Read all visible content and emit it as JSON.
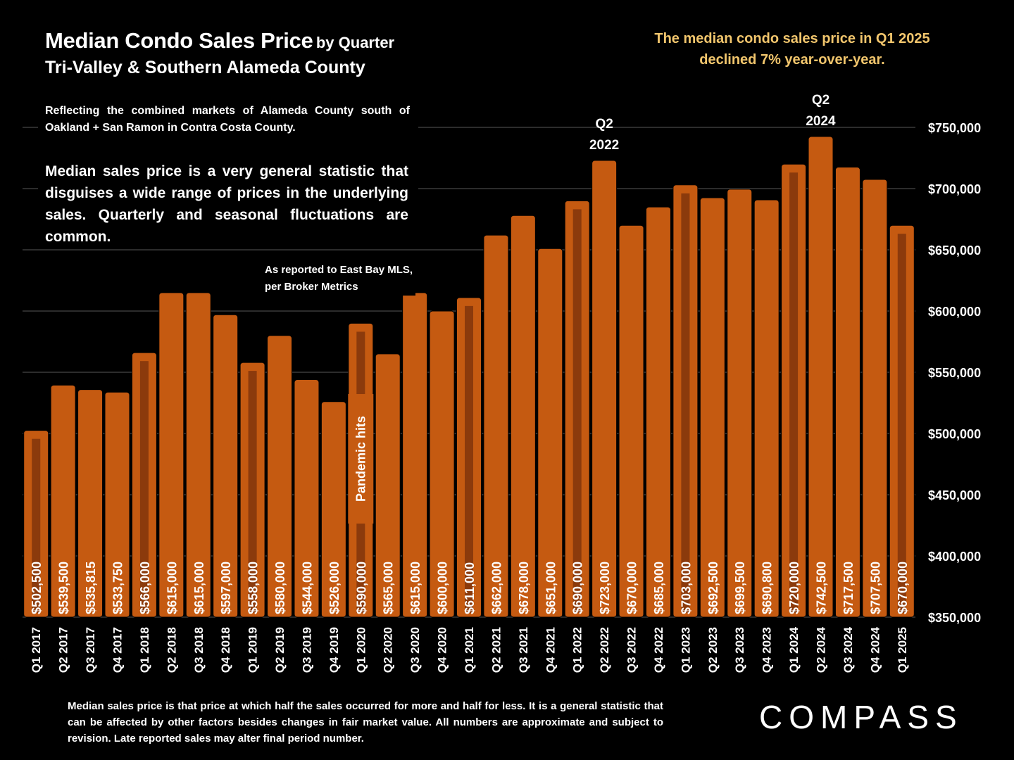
{
  "title": {
    "main": "Median Condo Sales Price",
    "by": "by Quarter",
    "sub": "Tri-Valley & Southern Alameda County"
  },
  "headline": "The median condo sales price in Q1 2025 declined 7% year-over-year.",
  "notes": {
    "small": "Reflecting the combined markets of Alameda County south of Oakland + San Ramon in Contra Costa County.",
    "big": "Median sales price is a very general statistic that disguises a wide range of prices in the underlying sales. Quarterly and seasonal fluctuations are common.",
    "source": "As reported to East Bay MLS, per Broker Metrics"
  },
  "footer": "Median sales price is that price at which half the sales occurred for more and half for less. It is a general statistic that can be affected by other factors besides changes in fair market value. All numbers are approximate and subject to revision. Late reported sales may alter final period number.",
  "logo": "COMPASS",
  "colors": {
    "background": "#000000",
    "bar": "#c55a11",
    "bar_stripe": "#8b3a0c",
    "headline": "#f2c66d",
    "grid": "#595959"
  },
  "chart_data": {
    "type": "bar",
    "categories": [
      "Q1 2017",
      "Q2 2017",
      "Q3 2017",
      "Q4 2017",
      "Q1 2018",
      "Q2 2018",
      "Q3 2018",
      "Q4 2018",
      "Q1 2019",
      "Q2 2019",
      "Q3 2019",
      "Q4 2019",
      "Q1 2020",
      "Q2 2020",
      "Q3 2020",
      "Q4 2020",
      "Q1 2021",
      "Q2 2021",
      "Q3 2021",
      "Q4 2021",
      "Q1 2022",
      "Q2 2022",
      "Q3 2022",
      "Q4 2022",
      "Q1 2023",
      "Q2 2023",
      "Q3 2023",
      "Q4 2023",
      "Q1 2024",
      "Q2 2024",
      "Q3 2024",
      "Q4 2024",
      "Q1 2025"
    ],
    "values": [
      502500,
      539500,
      535815,
      533750,
      566000,
      615000,
      615000,
      597000,
      558000,
      580000,
      544000,
      526000,
      590000,
      565000,
      615000,
      600000,
      611000,
      662000,
      678000,
      651000,
      690000,
      723000,
      670000,
      685000,
      703000,
      692500,
      699500,
      690800,
      720000,
      742500,
      717500,
      707500,
      670000
    ],
    "data_labels": [
      "$502,500",
      "$539,500",
      "$535,815",
      "$533,750",
      "$566,000",
      "$615,000",
      "$615,000",
      "$597,000",
      "$558,000",
      "$580,000",
      "$544,000",
      "$526,000",
      "$590,000",
      "$565,000",
      "$615,000",
      "$600,000",
      "$611,000",
      "$662,000",
      "$678,000",
      "$651,000",
      "$690,000",
      "$723,000",
      "$670,000",
      "$685,000",
      "$703,000",
      "$692,500",
      "$699,500",
      "$690,800",
      "$720,000",
      "$742,500",
      "$717,500",
      "$707,500",
      "$670,000"
    ],
    "q1_marker": true,
    "ylim": [
      350000,
      750000
    ],
    "yticks": [
      350000,
      400000,
      450000,
      500000,
      550000,
      600000,
      650000,
      700000,
      750000
    ],
    "ytick_labels": [
      "$350,000",
      "$400,000",
      "$450,000",
      "$500,000",
      "$550,000",
      "$600,000",
      "$650,000",
      "$700,000",
      "$750,000"
    ],
    "y_axis_side": "right",
    "grid": true,
    "annotations": [
      {
        "index": 21,
        "lines": [
          "Q2",
          "2022"
        ]
      },
      {
        "index": 29,
        "lines": [
          "Q2",
          "2024"
        ]
      },
      {
        "index": 12,
        "lines": [
          "Pandemic hits"
        ],
        "vertical": true
      }
    ]
  }
}
